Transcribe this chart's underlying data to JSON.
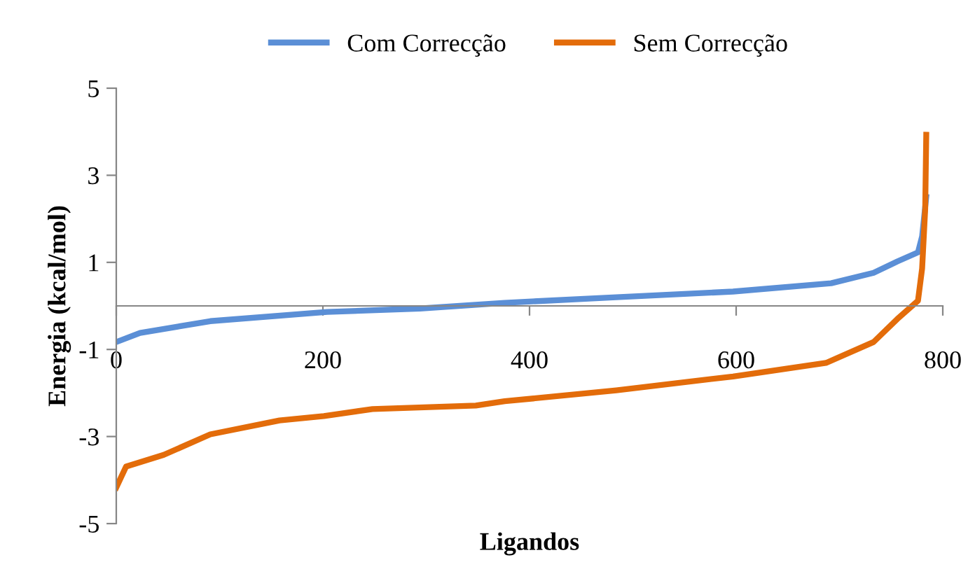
{
  "chart_data": {
    "type": "line",
    "xlabel": "Ligandos",
    "ylabel": "Energia (kcal/mol)",
    "xlim": [
      0,
      800
    ],
    "ylim": [
      -5,
      5
    ],
    "xticks": [
      0,
      200,
      400,
      600,
      800
    ],
    "yticks": [
      -5,
      -3,
      -1,
      1,
      3,
      5
    ],
    "grid": false,
    "legend": "top",
    "marker": "none",
    "line_style": "solid",
    "series": [
      {
        "name": "Com Correcção",
        "color": "#5b8fd6",
        "x": [
          0,
          23,
          91,
          204,
          294,
          376,
          484,
          597,
          692,
          733,
          756,
          776,
          780,
          784
        ],
        "values": [
          -0.83,
          -0.62,
          -0.35,
          -0.14,
          -0.06,
          0.07,
          0.2,
          0.33,
          0.52,
          0.76,
          1.02,
          1.23,
          1.6,
          2.5
        ]
      },
      {
        "name": "Sem Correcção",
        "color": "#e36c0a",
        "x": [
          0,
          9.5,
          46,
          91,
          158,
          201,
          248,
          348,
          376,
          484,
          597,
          687,
          733,
          756,
          776,
          780,
          783,
          784
        ],
        "values": [
          -4.17,
          -3.69,
          -3.42,
          -2.95,
          -2.63,
          -2.53,
          -2.37,
          -2.29,
          -2.19,
          -1.94,
          -1.62,
          -1.31,
          -0.83,
          -0.3,
          0.12,
          0.86,
          2.24,
          3.93
        ]
      }
    ]
  }
}
